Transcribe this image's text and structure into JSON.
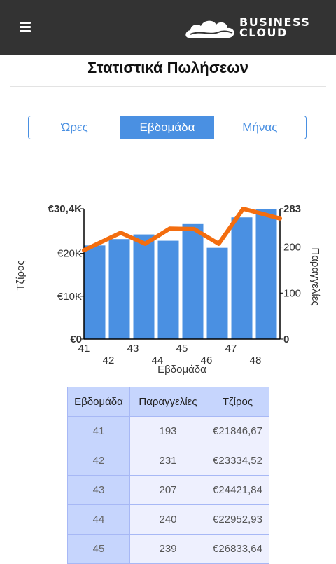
{
  "header": {
    "menu_icon": "hamburger-menu-icon",
    "logo": {
      "line1": "BUSINESS",
      "line2": "CLOUD",
      "icon": "cloud-icon"
    },
    "background_color": "#333333"
  },
  "page_title": "Στατιστικά Πωλήσεων",
  "tabs": [
    {
      "label": "Ώρες",
      "active": false
    },
    {
      "label": "Εβδομάδα",
      "active": true
    },
    {
      "label": "Μήνας",
      "active": false
    }
  ],
  "accent_color": "#4a90e2",
  "chart_data": {
    "type": "bar",
    "categories": [
      "41",
      "42",
      "43",
      "44",
      "45",
      "46",
      "47",
      "48"
    ],
    "series": [
      {
        "type": "bar",
        "axis": "left",
        "color": "#4a90e2",
        "values": [
          21846.67,
          23334.52,
          24421.84,
          22952.93,
          26833.64,
          21300,
          28400,
          30400
        ]
      },
      {
        "type": "line",
        "axis": "right",
        "color": "#f36d0f",
        "values": [
          193,
          231,
          207,
          240,
          239,
          207,
          283,
          262
        ]
      }
    ],
    "xlabel": "Εβδομάδα",
    "ylabel_left": "Τζίρος",
    "ylabel_right": "Παραγγελίες",
    "left_axis": {
      "ylim": [
        0,
        30400
      ],
      "ticks": [
        "€0",
        "€10K",
        "€20K",
        "€30,4K"
      ]
    },
    "right_axis": {
      "ylim": [
        0,
        283
      ],
      "ticks": [
        "0",
        "100",
        "200",
        "283"
      ]
    },
    "grid": false,
    "legend": "none"
  },
  "table": {
    "headers": [
      "Εβδομάδα",
      "Παραγγελίες",
      "Τζίρος"
    ],
    "rows": [
      [
        "41",
        "193",
        "€21846,67"
      ],
      [
        "42",
        "231",
        "€23334,52"
      ],
      [
        "43",
        "207",
        "€24421,84"
      ],
      [
        "44",
        "240",
        "€22952,93"
      ],
      [
        "45",
        "239",
        "€26833,64"
      ]
    ]
  }
}
